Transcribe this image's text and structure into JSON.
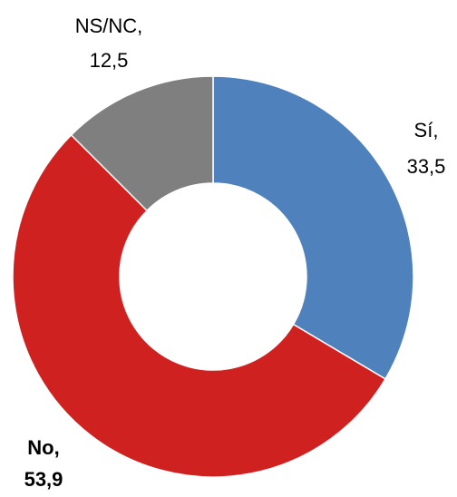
{
  "chart_data": {
    "type": "donut",
    "categories": [
      "Sí",
      "No",
      "NS/NC"
    ],
    "values": [
      33.5,
      53.9,
      12.5
    ],
    "value_labels": [
      "33,5",
      "53,9",
      "12,5"
    ],
    "label_separator": ",",
    "colors": [
      "#4f81bd",
      "#cf2220",
      "#7f7f7f"
    ]
  }
}
